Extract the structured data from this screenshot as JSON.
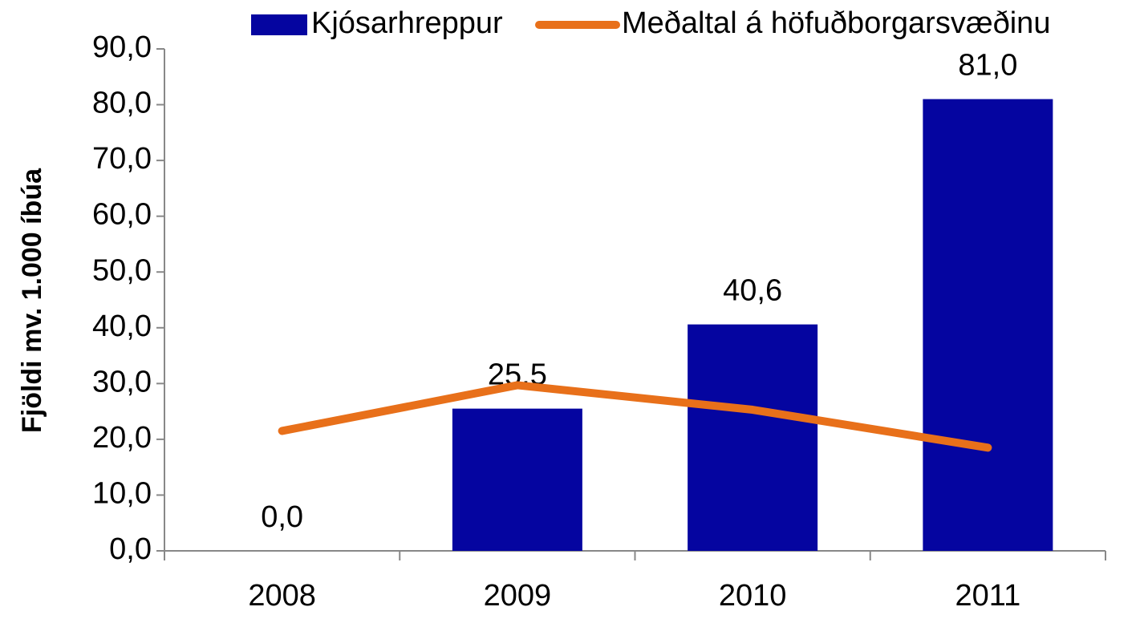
{
  "chart_data": {
    "type": "bar",
    "y_label": "Fjöldi mv. 1.000 íbúa",
    "categories": [
      "2008",
      "2009",
      "2010",
      "2011"
    ],
    "series": [
      {
        "name": "Kjósarhreppur",
        "type": "bar",
        "color": "#0505a0",
        "values": [
          0.0,
          25.5,
          40.6,
          81.0
        ],
        "value_labels": [
          "0,0",
          "25,5",
          "40,6",
          "81,0"
        ]
      },
      {
        "name": "Meðaltal á höfuðborgarsvæðinu",
        "type": "line",
        "color": "#e8701a",
        "values": [
          21.5,
          29.7,
          25.3,
          18.5
        ]
      }
    ],
    "ylim": [
      0,
      90
    ],
    "yticks": [
      {
        "value": 0,
        "label": "0,0"
      },
      {
        "value": 10,
        "label": "10,0"
      },
      {
        "value": 20,
        "label": "20,0"
      },
      {
        "value": 30,
        "label": "30,0"
      },
      {
        "value": 40,
        "label": "40,0"
      },
      {
        "value": 50,
        "label": "50,0"
      },
      {
        "value": 60,
        "label": "60,0"
      },
      {
        "value": 70,
        "label": "70,0"
      },
      {
        "value": 80,
        "label": "80,0"
      },
      {
        "value": 90,
        "label": "90,0"
      }
    ],
    "grid": false,
    "legend": "top"
  }
}
